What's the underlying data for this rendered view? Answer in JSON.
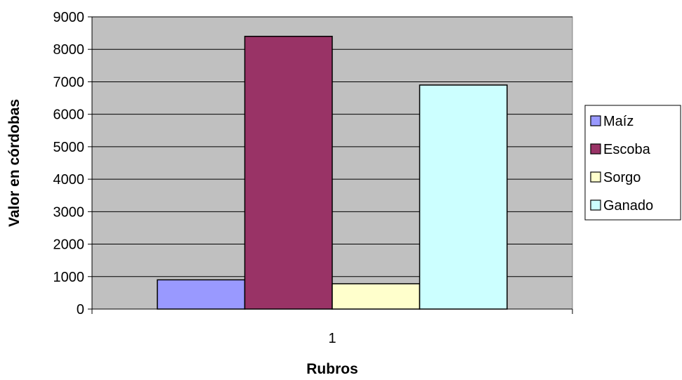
{
  "chart_data": {
    "type": "bar",
    "categories": [
      "1"
    ],
    "series": [
      {
        "name": "Maíz",
        "values": [
          900
        ],
        "color": "#9999FF"
      },
      {
        "name": "Escoba",
        "values": [
          8400
        ],
        "color": "#993366"
      },
      {
        "name": "Sorgo",
        "values": [
          780
        ],
        "color": "#FFFFCC"
      },
      {
        "name": "Ganado",
        "values": [
          6900
        ],
        "color": "#CCFFFF"
      }
    ],
    "xlabel": "Rubros",
    "ylabel": "Valor en córdobas",
    "ylim": [
      0,
      9000
    ],
    "yticks": [
      "0",
      "1000",
      "2000",
      "3000",
      "4000",
      "5000",
      "6000",
      "7000",
      "8000",
      "9000"
    ],
    "grid": true,
    "legend": "right",
    "plot_background": "#C0C0C0"
  }
}
